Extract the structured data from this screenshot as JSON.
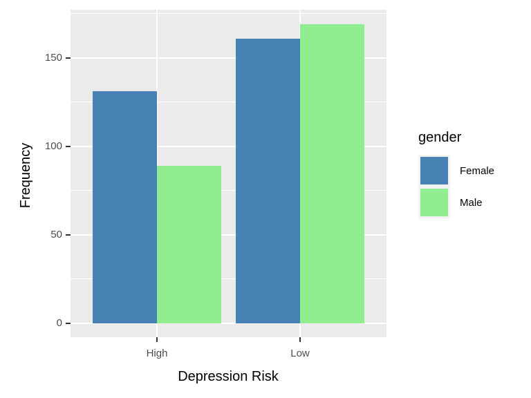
{
  "chart_data": {
    "type": "bar",
    "grouping": "dodged",
    "title": "",
    "xlabel": "Depression Risk",
    "ylabel": "Frequency",
    "categories": [
      "High",
      "Low"
    ],
    "series": [
      {
        "name": "Female",
        "color": "#4682B4",
        "values": [
          131,
          161
        ]
      },
      {
        "name": "Male",
        "color": "#90EE90",
        "values": [
          89,
          169
        ]
      }
    ],
    "y_ticks": [
      0,
      50,
      100,
      150
    ],
    "y_minor_ticks": [
      25,
      75,
      125,
      175
    ],
    "ylim": [
      -8.5,
      177.5
    ],
    "grid": true,
    "legend": {
      "title": "gender",
      "position": "right",
      "labels": [
        "Female",
        "Male"
      ]
    },
    "colors": {
      "panel_bg": "#EBEBEB",
      "gridline": "#FFFFFF",
      "tick_label": "#4D4D4D",
      "tick_mark": "#333333"
    }
  }
}
